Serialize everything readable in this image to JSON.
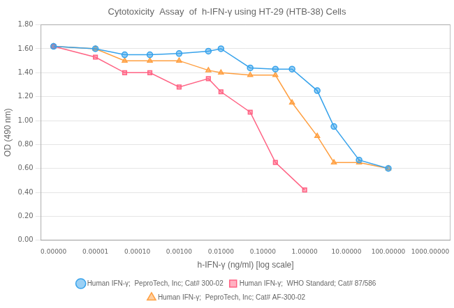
{
  "chart_data": {
    "type": "line",
    "title": "Cytotoxicity  Assay  of  h-IFN-γ using HT-29 (HTB-38) Cells",
    "x_label": "h-IFN-γ (ng/ml) [log scale]",
    "y_label": "OD (490 nm)",
    "log": "x",
    "xlim": [
      5e-07,
      3000.0
    ],
    "xticks": [
      {
        "value": 1e-06,
        "label": "0.00000"
      },
      {
        "value": 1e-05,
        "label": "0.00001"
      },
      {
        "value": 0.0001,
        "label": "0.00010"
      },
      {
        "value": 0.001,
        "label": "0.00100"
      },
      {
        "value": 0.01,
        "label": "0.01000"
      },
      {
        "value": 0.1,
        "label": "0.10000"
      },
      {
        "value": 1.0,
        "label": "1.00000"
      },
      {
        "value": 10.0,
        "label": "10.00000"
      },
      {
        "value": 100.0,
        "label": "100.00000"
      },
      {
        "value": 1000.0,
        "label": "1000.00000"
      }
    ],
    "ylim": [
      0.0,
      1.8
    ],
    "yticks": [
      {
        "value": 0.0,
        "label": "0.00"
      },
      {
        "value": 0.2,
        "label": "0.20"
      },
      {
        "value": 0.4,
        "label": "0.40"
      },
      {
        "value": 0.6,
        "label": "0.60"
      },
      {
        "value": 0.8,
        "label": "0.80"
      },
      {
        "value": 1.0,
        "label": "1.00"
      },
      {
        "value": 1.2,
        "label": "1.20"
      },
      {
        "value": 1.4,
        "label": "1.40"
      },
      {
        "value": 1.6,
        "label": "1.60"
      },
      {
        "value": 1.8,
        "label": "1.80"
      }
    ],
    "grid": "y",
    "legend": "bottom",
    "series": [
      {
        "name": "Human IFN-γ;  PeproTech, Inc; Cat# 300-02",
        "marker": "circle",
        "x": [
          1e-06,
          1e-05,
          5e-05,
          0.0002,
          0.001,
          0.005,
          0.01,
          0.05,
          0.2,
          0.5,
          2.0,
          5.0,
          20.0,
          100.0
        ],
        "values": [
          1.62,
          1.6,
          1.55,
          1.55,
          1.56,
          1.58,
          1.6,
          1.44,
          1.43,
          1.43,
          1.25,
          0.95,
          0.67,
          0.6
        ]
      },
      {
        "name": "Human IFN-γ;  WHO Standard; Cat# 87/586",
        "marker": "square",
        "x": [
          1e-06,
          1e-05,
          5e-05,
          0.0002,
          0.001,
          0.005,
          0.01,
          0.05,
          0.2,
          1.0,
          5.0
        ],
        "values": [
          1.62,
          1.53,
          1.4,
          1.4,
          1.28,
          1.35,
          1.24,
          1.07,
          0.65,
          0.42,
          null
        ]
      },
      {
        "name": "Human IFN-γ;  PeproTech, Inc; Cat# AF-300-02",
        "marker": "triangle",
        "x": [
          1e-06,
          1e-05,
          5e-05,
          0.0002,
          0.001,
          0.005,
          0.01,
          0.05,
          0.2,
          0.5,
          2.0,
          5.0,
          20.0,
          100.0
        ],
        "values": [
          1.62,
          1.6,
          1.5,
          1.5,
          1.5,
          1.42,
          1.4,
          1.38,
          1.38,
          1.15,
          0.87,
          0.65,
          0.65,
          0.6
        ]
      }
    ]
  }
}
